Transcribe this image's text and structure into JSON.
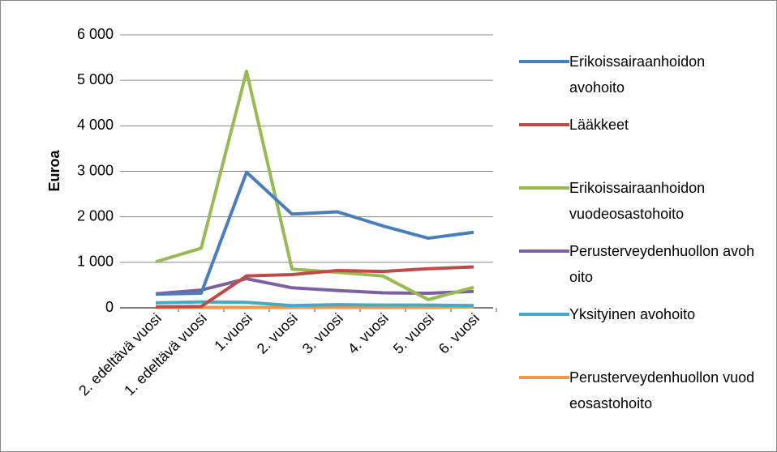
{
  "chart_data": {
    "type": "line",
    "y_label": "Euroa",
    "categories": [
      "2. edeltävä vuosi",
      "1. edeltävä vuosi",
      "1.vuosi",
      "2. vuosi",
      "3. vuosi",
      "4. vuosi",
      "5. vuosi",
      "6. vuosi"
    ],
    "ylim": [
      0,
      6000
    ],
    "yticks": [
      0,
      {
        "value": 1000,
        "label": "1 000"
      },
      {
        "value": 2000,
        "label": "2 000"
      },
      {
        "value": 3000,
        "label": "3 000"
      },
      {
        "value": 4000,
        "label": "4 000"
      },
      {
        "value": 5000,
        "label": "5 000"
      },
      {
        "value": 6000,
        "label": "6 000"
      }
    ],
    "grid": true,
    "legend": "right",
    "series": [
      {
        "name": "Erikoissairaanhoidon avohoito",
        "color": "#4a7ebb",
        "values": [
          300,
          320,
          2980,
          2060,
          2110,
          1800,
          1530,
          1660
        ]
      },
      {
        "name": "Lääkkeet",
        "color": "#be4b48",
        "values": [
          20,
          30,
          700,
          730,
          820,
          800,
          860,
          900
        ]
      },
      {
        "name": "Erikoissairaanhoidon vuodeosastohoito",
        "color": "#98b954",
        "values": [
          1010,
          1310,
          5200,
          850,
          780,
          700,
          180,
          450
        ]
      },
      {
        "name": "Perusterveydenhuollon avohoito",
        "color": "#7d60a0",
        "values": [
          310,
          390,
          640,
          440,
          380,
          330,
          320,
          360
        ]
      },
      {
        "name": "Yksityinen avohoito",
        "color": "#46aac5",
        "values": [
          110,
          130,
          120,
          50,
          70,
          60,
          60,
          50
        ]
      },
      {
        "name": "Perusterveydenhuollon vuodeosastohoito",
        "color": "#f79646",
        "values": [
          10,
          10,
          10,
          10,
          10,
          10,
          10,
          20
        ]
      }
    ]
  }
}
